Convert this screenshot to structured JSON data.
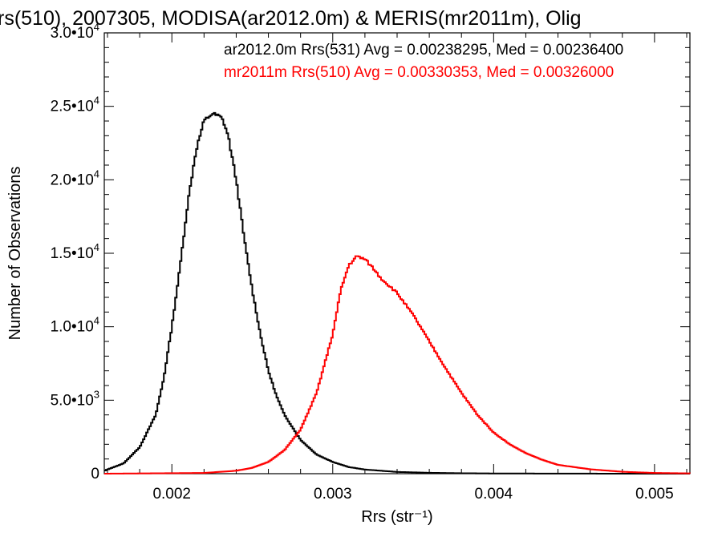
{
  "chart_data": {
    "type": "histogram-line",
    "title": "rs(510), 2007305, MODISA(ar2012.0m) & MERIS(mr2011m), Olig",
    "xlabel": "Rrs (str⁻¹)",
    "ylabel": "Number of Observations",
    "xlim": [
      0.00158,
      0.00522
    ],
    "ylim": [
      0,
      30000
    ],
    "x_ticks": [
      0.002,
      0.003,
      0.004,
      0.005
    ],
    "x_tick_labels": [
      "0.002",
      "0.003",
      "0.004",
      "0.005"
    ],
    "y_ticks": [
      0,
      5000,
      10000,
      15000,
      20000,
      25000,
      30000
    ],
    "y_tick_labels": [
      {
        "mant": "0",
        "exp": ""
      },
      {
        "mant": "5.0•10",
        "exp": "3"
      },
      {
        "mant": "1.0•10",
        "exp": "4"
      },
      {
        "mant": "1.5•10",
        "exp": "4"
      },
      {
        "mant": "2.0•10",
        "exp": "4"
      },
      {
        "mant": "2.5•10",
        "exp": "4"
      },
      {
        "mant": "3.0•10",
        "exp": "4"
      }
    ],
    "legend_placement": "top-right",
    "series": [
      {
        "name": "ar2012.0m Rrs(531) Avg = 0.00238295, Med = 0.00236400",
        "color": "#000000",
        "x": [
          0.00158,
          0.0017,
          0.0018,
          0.0019,
          0.00195,
          0.002,
          0.00205,
          0.0021,
          0.00215,
          0.0022,
          0.00225,
          0.0023,
          0.00232,
          0.00235,
          0.0024,
          0.00245,
          0.0025,
          0.00255,
          0.0026,
          0.00265,
          0.0027,
          0.0028,
          0.0029,
          0.003,
          0.0031,
          0.0032,
          0.0034,
          0.0036,
          0.0038,
          0.004,
          0.0045,
          0.005,
          0.00522
        ],
        "values": [
          200,
          700,
          1800,
          4000,
          6500,
          10000,
          14000,
          18500,
          22000,
          24000,
          24500,
          24300,
          24000,
          23000,
          20000,
          16000,
          12500,
          9500,
          7000,
          5300,
          4000,
          2300,
          1300,
          800,
          450,
          280,
          120,
          60,
          30,
          15,
          5,
          0,
          0
        ]
      },
      {
        "name": "mr2011m Rrs(510) Avg = 0.00330353, Med = 0.00326000",
        "color": "#ff0000",
        "x": [
          0.00158,
          0.0022,
          0.0024,
          0.0025,
          0.0026,
          0.0027,
          0.0028,
          0.0029,
          0.003,
          0.00305,
          0.0031,
          0.00315,
          0.0032,
          0.00325,
          0.0033,
          0.0034,
          0.0035,
          0.0036,
          0.0037,
          0.0038,
          0.0039,
          0.004,
          0.0041,
          0.0042,
          0.0043,
          0.0044,
          0.0046,
          0.0048,
          0.005,
          0.00522
        ],
        "values": [
          0,
          50,
          200,
          400,
          800,
          1600,
          3000,
          5500,
          9500,
          12500,
          14200,
          14800,
          14600,
          14000,
          13300,
          12300,
          10800,
          9000,
          7200,
          5500,
          4000,
          2800,
          2000,
          1400,
          950,
          600,
          300,
          130,
          50,
          20
        ]
      }
    ]
  }
}
